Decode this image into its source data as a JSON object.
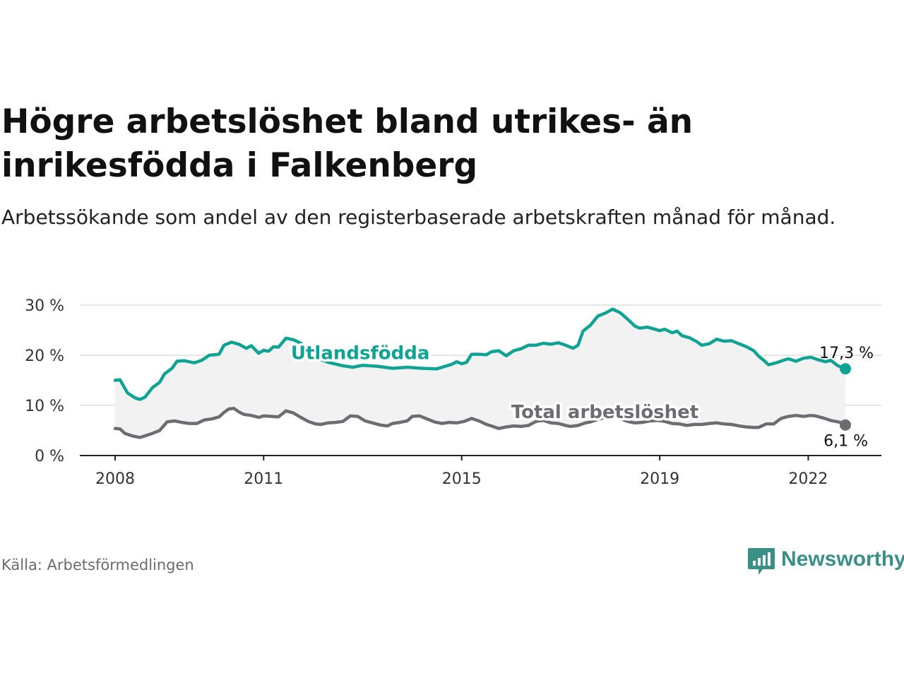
{
  "title": "Högre arbetslöshet bland utrikes- än inrikesfödda i Falkenberg",
  "subtitle": "Arbetssökande som andel av den registerbaserade arbetskraften månad för månad.",
  "source": "Källa: Arbetsförmedlingen",
  "brand": {
    "name": "Newsworthy",
    "color": "#3a8f86"
  },
  "colors": {
    "foreign": "#0fa393",
    "total": "#6e6b73",
    "band": "#f2f2f2",
    "grid": "#dddddd"
  },
  "chart_data": {
    "type": "line",
    "title": "Högre arbetslöshet bland utrikes- än inrikesfödda i Falkenberg",
    "xlabel": "",
    "ylabel": "",
    "x_range": [
      2008,
      2022.75
    ],
    "ylim": [
      0,
      30
    ],
    "y_ticks": [
      {
        "value": 0,
        "label": "0 %"
      },
      {
        "value": 10,
        "label": "10 %"
      },
      {
        "value": 20,
        "label": "20 %"
      },
      {
        "value": 30,
        "label": "30 %"
      }
    ],
    "x_ticks": [
      {
        "value": 2008,
        "label": "2008"
      },
      {
        "value": 2011,
        "label": "2011"
      },
      {
        "value": 2015,
        "label": "2015"
      },
      {
        "value": 2019,
        "label": "2019"
      },
      {
        "value": 2022,
        "label": "2022"
      }
    ],
    "series": [
      {
        "name": "Utlandsfödda",
        "color": "#0fa393",
        "end_label": "17,3 %",
        "label_x": 2011.55,
        "label_y": 19.2,
        "points": [
          [
            2008.0,
            15.0
          ],
          [
            2008.1,
            15.1
          ],
          [
            2008.25,
            12.5
          ],
          [
            2008.4,
            11.5
          ],
          [
            2008.5,
            11.2
          ],
          [
            2008.6,
            11.6
          ],
          [
            2008.75,
            13.5
          ],
          [
            2008.9,
            14.6
          ],
          [
            2009.0,
            16.3
          ],
          [
            2009.15,
            17.4
          ],
          [
            2009.25,
            18.8
          ],
          [
            2009.4,
            18.9
          ],
          [
            2009.6,
            18.5
          ],
          [
            2009.75,
            19.0
          ],
          [
            2009.9,
            20.0
          ],
          [
            2010.1,
            20.2
          ],
          [
            2010.2,
            22.0
          ],
          [
            2010.35,
            22.6
          ],
          [
            2010.5,
            22.2
          ],
          [
            2010.65,
            21.4
          ],
          [
            2010.75,
            21.9
          ],
          [
            2010.9,
            20.4
          ],
          [
            2011.0,
            21.0
          ],
          [
            2011.1,
            20.8
          ],
          [
            2011.2,
            21.7
          ],
          [
            2011.3,
            21.6
          ],
          [
            2011.45,
            23.4
          ],
          [
            2011.6,
            23.1
          ],
          [
            2011.75,
            22.4
          ],
          [
            2011.9,
            21.0
          ],
          [
            2012.05,
            19.5
          ],
          [
            2012.3,
            18.6
          ],
          [
            2012.6,
            17.9
          ],
          [
            2012.8,
            17.6
          ],
          [
            2013.0,
            18.0
          ],
          [
            2013.3,
            17.8
          ],
          [
            2013.6,
            17.4
          ],
          [
            2013.9,
            17.6
          ],
          [
            2014.2,
            17.4
          ],
          [
            2014.5,
            17.3
          ],
          [
            2014.8,
            18.2
          ],
          [
            2014.9,
            18.7
          ],
          [
            2015.0,
            18.3
          ],
          [
            2015.1,
            18.6
          ],
          [
            2015.2,
            20.2
          ],
          [
            2015.35,
            20.2
          ],
          [
            2015.5,
            20.1
          ],
          [
            2015.6,
            20.7
          ],
          [
            2015.75,
            20.9
          ],
          [
            2015.9,
            19.9
          ],
          [
            2016.05,
            20.9
          ],
          [
            2016.2,
            21.3
          ],
          [
            2016.35,
            22.0
          ],
          [
            2016.5,
            22.0
          ],
          [
            2016.65,
            22.4
          ],
          [
            2016.8,
            22.2
          ],
          [
            2016.95,
            22.5
          ],
          [
            2017.1,
            22.0
          ],
          [
            2017.25,
            21.4
          ],
          [
            2017.35,
            22.0
          ],
          [
            2017.45,
            24.8
          ],
          [
            2017.6,
            26.0
          ],
          [
            2017.75,
            27.8
          ],
          [
            2017.9,
            28.4
          ],
          [
            2018.05,
            29.2
          ],
          [
            2018.2,
            28.5
          ],
          [
            2018.35,
            27.2
          ],
          [
            2018.5,
            25.8
          ],
          [
            2018.6,
            25.4
          ],
          [
            2018.75,
            25.6
          ],
          [
            2018.9,
            25.2
          ],
          [
            2019.0,
            24.9
          ],
          [
            2019.1,
            25.2
          ],
          [
            2019.25,
            24.5
          ],
          [
            2019.35,
            24.8
          ],
          [
            2019.45,
            23.9
          ],
          [
            2019.6,
            23.5
          ],
          [
            2019.75,
            22.7
          ],
          [
            2019.85,
            22.0
          ],
          [
            2020.0,
            22.3
          ],
          [
            2020.15,
            23.2
          ],
          [
            2020.3,
            22.8
          ],
          [
            2020.45,
            22.9
          ],
          [
            2020.6,
            22.3
          ],
          [
            2020.75,
            21.7
          ],
          [
            2020.9,
            20.9
          ],
          [
            2021.0,
            19.8
          ],
          [
            2021.1,
            19.0
          ],
          [
            2021.2,
            18.1
          ],
          [
            2021.35,
            18.5
          ],
          [
            2021.5,
            19.0
          ],
          [
            2021.6,
            19.3
          ],
          [
            2021.75,
            18.8
          ],
          [
            2021.9,
            19.4
          ],
          [
            2022.05,
            19.6
          ],
          [
            2022.2,
            19.1
          ],
          [
            2022.35,
            18.7
          ],
          [
            2022.45,
            19.0
          ],
          [
            2022.6,
            17.9
          ],
          [
            2022.75,
            17.3
          ]
        ]
      },
      {
        "name": "Total arbetslöshet",
        "color": "#6e6b73",
        "end_label": "6,1 %",
        "label_x": 2016.0,
        "label_y": 7.5,
        "points": [
          [
            2008.0,
            5.4
          ],
          [
            2008.1,
            5.3
          ],
          [
            2008.2,
            4.4
          ],
          [
            2008.35,
            3.9
          ],
          [
            2008.5,
            3.6
          ],
          [
            2008.6,
            3.9
          ],
          [
            2008.75,
            4.4
          ],
          [
            2008.9,
            5.0
          ],
          [
            2009.05,
            6.7
          ],
          [
            2009.2,
            6.9
          ],
          [
            2009.35,
            6.6
          ],
          [
            2009.5,
            6.4
          ],
          [
            2009.65,
            6.4
          ],
          [
            2009.8,
            7.1
          ],
          [
            2009.95,
            7.3
          ],
          [
            2010.1,
            7.7
          ],
          [
            2010.2,
            8.6
          ],
          [
            2010.3,
            9.3
          ],
          [
            2010.4,
            9.4
          ],
          [
            2010.5,
            8.7
          ],
          [
            2010.6,
            8.2
          ],
          [
            2010.75,
            8.0
          ],
          [
            2010.9,
            7.6
          ],
          [
            2011.0,
            7.9
          ],
          [
            2011.15,
            7.8
          ],
          [
            2011.3,
            7.7
          ],
          [
            2011.45,
            8.9
          ],
          [
            2011.6,
            8.5
          ],
          [
            2011.75,
            7.6
          ],
          [
            2011.9,
            6.8
          ],
          [
            2012.05,
            6.3
          ],
          [
            2012.15,
            6.2
          ],
          [
            2012.3,
            6.5
          ],
          [
            2012.45,
            6.6
          ],
          [
            2012.6,
            6.8
          ],
          [
            2012.75,
            7.9
          ],
          [
            2012.9,
            7.8
          ],
          [
            2013.05,
            6.9
          ],
          [
            2013.2,
            6.5
          ],
          [
            2013.35,
            6.1
          ],
          [
            2013.5,
            5.9
          ],
          [
            2013.6,
            6.4
          ],
          [
            2013.75,
            6.6
          ],
          [
            2013.9,
            6.9
          ],
          [
            2014.0,
            7.8
          ],
          [
            2014.15,
            7.9
          ],
          [
            2014.3,
            7.3
          ],
          [
            2014.45,
            6.7
          ],
          [
            2014.6,
            6.4
          ],
          [
            2014.75,
            6.6
          ],
          [
            2014.9,
            6.5
          ],
          [
            2015.05,
            6.8
          ],
          [
            2015.2,
            7.4
          ],
          [
            2015.35,
            6.9
          ],
          [
            2015.5,
            6.2
          ],
          [
            2015.6,
            5.9
          ],
          [
            2015.75,
            5.4
          ],
          [
            2015.9,
            5.7
          ],
          [
            2016.05,
            5.9
          ],
          [
            2016.2,
            5.8
          ],
          [
            2016.35,
            6.0
          ],
          [
            2016.5,
            6.8
          ],
          [
            2016.65,
            7.0
          ],
          [
            2016.8,
            6.5
          ],
          [
            2016.95,
            6.4
          ],
          [
            2017.1,
            6.0
          ],
          [
            2017.2,
            5.8
          ],
          [
            2017.35,
            6.0
          ],
          [
            2017.5,
            6.5
          ],
          [
            2017.6,
            6.7
          ],
          [
            2017.75,
            7.2
          ],
          [
            2017.9,
            7.6
          ],
          [
            2018.05,
            7.8
          ],
          [
            2018.2,
            7.4
          ],
          [
            2018.35,
            6.8
          ],
          [
            2018.5,
            6.5
          ],
          [
            2018.65,
            6.6
          ],
          [
            2018.8,
            6.9
          ],
          [
            2018.95,
            7.0
          ],
          [
            2019.1,
            6.8
          ],
          [
            2019.25,
            6.4
          ],
          [
            2019.4,
            6.3
          ],
          [
            2019.55,
            6.0
          ],
          [
            2019.7,
            6.2
          ],
          [
            2019.85,
            6.2
          ],
          [
            2020.0,
            6.4
          ],
          [
            2020.15,
            6.5
          ],
          [
            2020.3,
            6.3
          ],
          [
            2020.45,
            6.2
          ],
          [
            2020.6,
            5.9
          ],
          [
            2020.75,
            5.7
          ],
          [
            2020.9,
            5.6
          ],
          [
            2021.0,
            5.6
          ],
          [
            2021.15,
            6.3
          ],
          [
            2021.3,
            6.3
          ],
          [
            2021.45,
            7.4
          ],
          [
            2021.6,
            7.8
          ],
          [
            2021.75,
            8.0
          ],
          [
            2021.9,
            7.8
          ],
          [
            2022.05,
            8.0
          ],
          [
            2022.15,
            7.9
          ],
          [
            2022.3,
            7.5
          ],
          [
            2022.45,
            7.0
          ],
          [
            2022.55,
            6.8
          ],
          [
            2022.65,
            6.6
          ],
          [
            2022.75,
            6.1
          ]
        ]
      }
    ]
  }
}
